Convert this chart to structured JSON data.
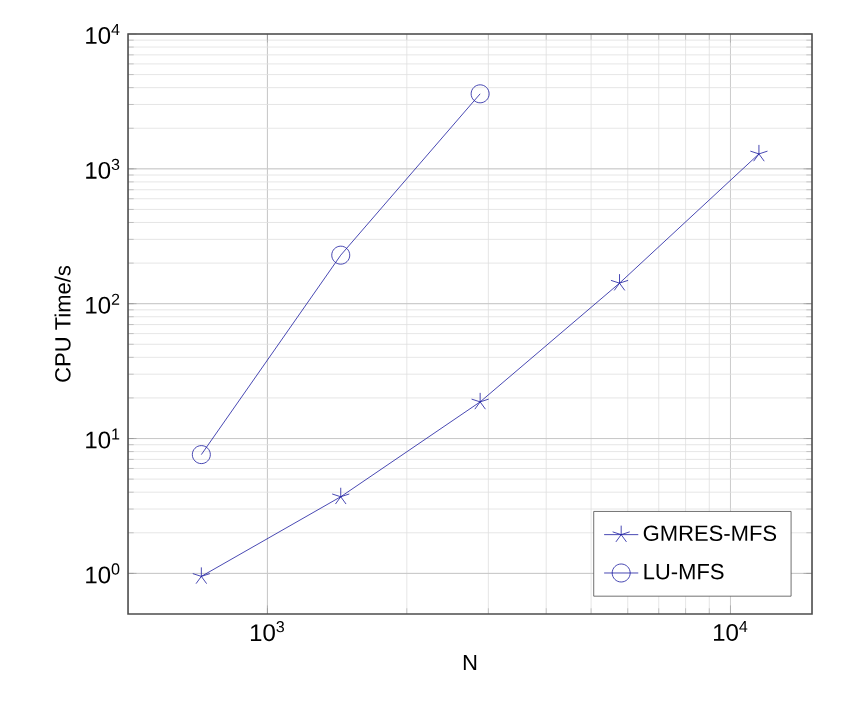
{
  "chart_data": {
    "type": "line",
    "xlabel": "N",
    "ylabel": "CPU Time/s",
    "log": "xy",
    "grid": true,
    "legend": "bottom right",
    "line_style": "solid",
    "xlim": [
      500,
      15000
    ],
    "ylim": [
      0.5,
      10000
    ],
    "xticks": [
      {
        "value": 1000,
        "label": "10$^{3}$"
      },
      {
        "value": 10000,
        "label": "10$^{4}$"
      }
    ],
    "yticks": [
      {
        "value": 1,
        "label": "10$^{0}$"
      },
      {
        "value": 10,
        "label": "10$^{1}$"
      },
      {
        "value": 100,
        "label": "10$^{2}$"
      },
      {
        "value": 1000,
        "label": "10$^{3}$"
      },
      {
        "value": 10000,
        "label": "10$^{4}$"
      }
    ],
    "series": [
      {
        "name": "GMRES-MFS",
        "color": "#1a1aa0",
        "marker": "cross",
        "x": [
          720,
          1440,
          2880,
          5760,
          11520
        ],
        "values": [
          0.95,
          3.7,
          18.7,
          142,
          1290
        ]
      },
      {
        "name": "LU-MFS",
        "color": "#1a1aa0",
        "marker": "circle",
        "x": [
          720,
          1440,
          2880
        ],
        "values": [
          7.6,
          229,
          3600
        ]
      }
    ]
  }
}
